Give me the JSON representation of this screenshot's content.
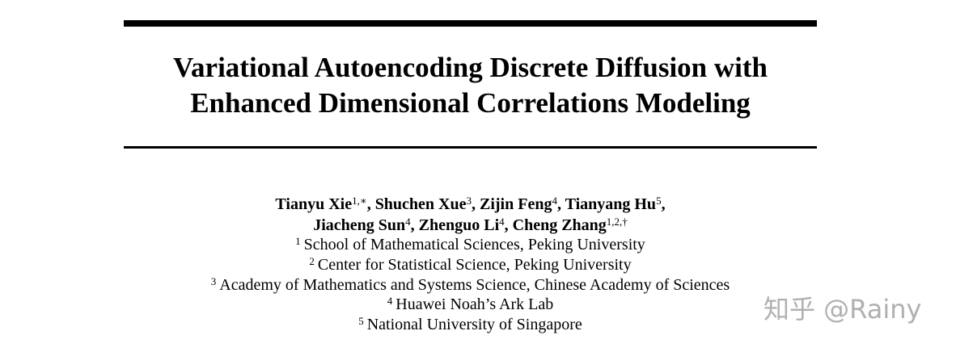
{
  "paper": {
    "title_lines": [
      "Variational Autoencoding Discrete Diffusion with",
      "Enhanced Dimensional Correlations Modeling"
    ],
    "authors": [
      {
        "name": "Tianyu Xie",
        "sup": "1,∗",
        "sep": ", "
      },
      {
        "name": "Shuchen Xue",
        "sup": "3",
        "sep": ", "
      },
      {
        "name": "Zijin Feng",
        "sup": "4",
        "sep": ", "
      },
      {
        "name": "Tianyang Hu",
        "sup": "5",
        "sep": ","
      },
      {
        "name": "Jiacheng Sun",
        "sup": "4",
        "sep": ", "
      },
      {
        "name": "Zhenguo Li",
        "sup": "4",
        "sep": ", "
      },
      {
        "name": "Cheng Zhang",
        "sup": "1,2,†",
        "sep": ""
      }
    ],
    "affiliations": [
      {
        "num": "1",
        "text": "School of Mathematical Sciences, Peking University"
      },
      {
        "num": "2",
        "text": "Center for Statistical Science, Peking University"
      },
      {
        "num": "3",
        "text": "Academy of Mathematics and Systems Science, Chinese Academy of Sciences"
      },
      {
        "num": "4",
        "text": "Huawei Noah’s Ark Lab"
      },
      {
        "num": "5",
        "text": "National University of Singapore"
      }
    ]
  },
  "watermark": {
    "text": "知乎 @Rainy"
  }
}
